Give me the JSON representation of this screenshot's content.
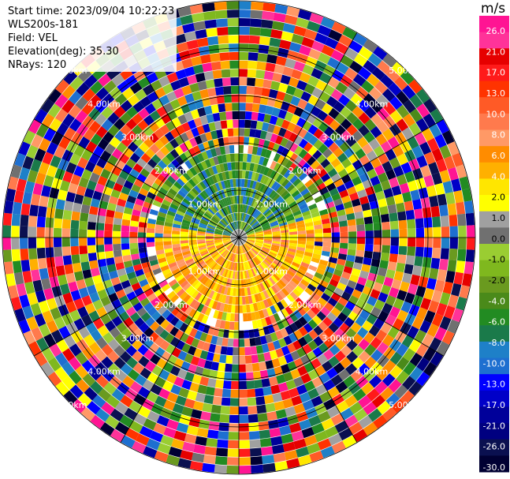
{
  "header": {
    "start_time": "Start time: 2023/09/04 10:22:23",
    "instrument": "WLS200s-181",
    "field": "Field: VEL",
    "elevation": "Elevation(deg): 35.30",
    "nrays": "NRays: 120"
  },
  "chart_data": {
    "type": "heatmap",
    "projection": "polar-ppi",
    "nrays": 120,
    "range_rings_km": [
      1.0,
      2.0,
      3.0,
      4.0,
      5.0
    ],
    "ring_labels": [
      "1.00km",
      "2.00km",
      "3.00km",
      "4.00km",
      "5.00km"
    ],
    "colorbar": {
      "unit": "m/s",
      "tick_labels": [
        "26.0",
        "21.0",
        "17.0",
        "13.0",
        "10.0",
        "8.0",
        "6.0",
        "4.0",
        "2.0",
        "1.0",
        "0.0",
        "-1.0",
        "-2.0",
        "-4.0",
        "-6.0",
        "-8.0",
        "-10.0",
        "-13.0",
        "-17.0",
        "-21.0",
        "-26.0",
        "-30.0"
      ],
      "colors": [
        "#ff1493",
        "#ff3399",
        "#e60000",
        "#ff1a1a",
        "#ff3300",
        "#ff5a26",
        "#ff7a4d",
        "#ff9966",
        "#ff8c00",
        "#ffb000",
        "#ffe600",
        "#ffff00",
        "#a0a0a0",
        "#707070",
        "#9acd32",
        "#7fb81e",
        "#6a9a1f",
        "#4a8a1a",
        "#228b22",
        "#1a7a4a",
        "#1e80c8",
        "#1e6fd0",
        "#0000ff",
        "#0000c8",
        "#00009a",
        "#000080",
        "#0a1050",
        "#000033"
      ]
    },
    "colors": {
      "neg_near": "#228b22",
      "pos_near": "#ff9f00",
      "pos_mid": "#ffff00"
    }
  }
}
